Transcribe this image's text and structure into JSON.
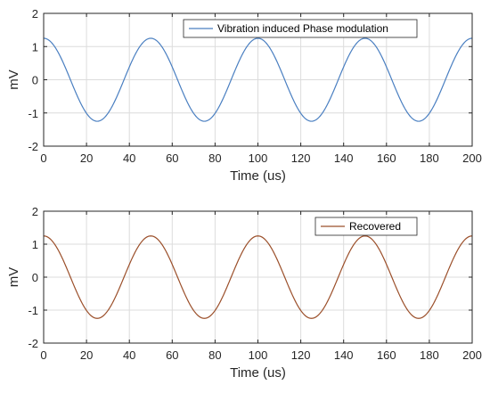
{
  "chart_data": [
    {
      "type": "line",
      "xlabel": "Time (us)",
      "ylabel": "mV",
      "xlim": [
        0,
        200
      ],
      "ylim": [
        -2,
        2
      ],
      "xticks": [
        0,
        20,
        40,
        60,
        80,
        100,
        120,
        140,
        160,
        180,
        200
      ],
      "yticks": [
        -2,
        -1,
        0,
        1,
        2
      ],
      "grid": true,
      "legend_position": "top-right",
      "series": [
        {
          "name": "Vibration induced Phase modulation",
          "color": "#4a7fc1",
          "function": "amplitude * cos(2*pi*t/period)",
          "amplitude": 1.25,
          "period_us": 50,
          "x": [
            0,
            25,
            50,
            75,
            100,
            125,
            150,
            175,
            200
          ],
          "values": [
            1.25,
            -1.25,
            1.25,
            -1.25,
            1.25,
            -1.25,
            1.25,
            -1.25,
            1.25
          ]
        }
      ]
    },
    {
      "type": "line",
      "xlabel": "Time (us)",
      "ylabel": "mV",
      "xlim": [
        0,
        200
      ],
      "ylim": [
        -2,
        2
      ],
      "xticks": [
        0,
        20,
        40,
        60,
        80,
        100,
        120,
        140,
        160,
        180,
        200
      ],
      "yticks": [
        -2,
        -1,
        0,
        1,
        2
      ],
      "grid": true,
      "legend_position": "top-right",
      "series": [
        {
          "name": "Recovered",
          "color": "#9b4f2a",
          "function": "amplitude * cos(2*pi*t/period)",
          "amplitude": 1.25,
          "period_us": 50,
          "x": [
            0,
            25,
            50,
            75,
            100,
            125,
            150,
            175,
            200
          ],
          "values": [
            1.25,
            -1.25,
            1.25,
            -1.25,
            1.25,
            -1.25,
            1.25,
            -1.25,
            1.25
          ]
        }
      ]
    }
  ]
}
